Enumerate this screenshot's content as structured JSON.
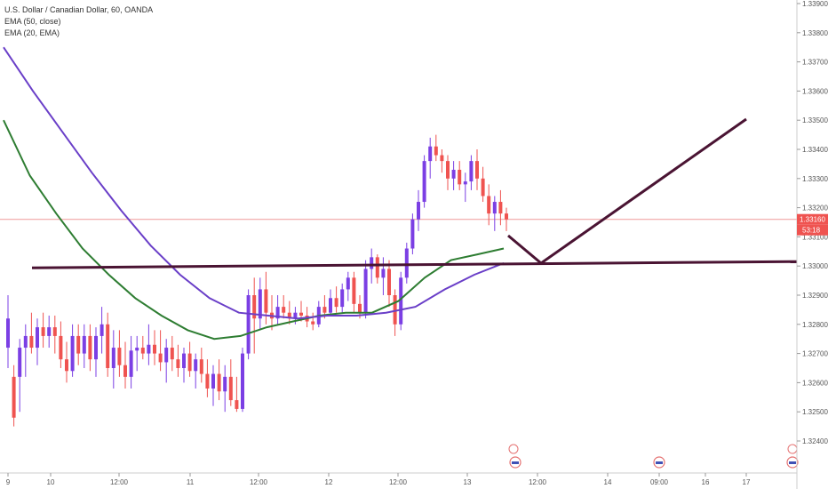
{
  "legend": {
    "title": "U.S. Dollar / Canadian Dollar, 60, OANDA",
    "ema50": "EMA (50, close)",
    "ema20": "EMA (20, EMA)"
  },
  "price_tag": {
    "price": "1.33160",
    "countdown": "53:18"
  },
  "colors": {
    "up": "#7b3fe4",
    "down": "#ef5350",
    "ema50": "#2e7d32",
    "ema20": "#6a3fc8",
    "drawing": "#4a1433",
    "price_line": "#ef9a9a",
    "tag_bg": "#ef5350"
  },
  "chart_data": {
    "type": "candlestick",
    "symbol": "USDCAD",
    "timeframe": "60",
    "source": "OANDA",
    "ylim": [
      1.3235,
      1.3395
    ],
    "y_ticks": [
      "1.32400",
      "1.32500",
      "1.32600",
      "1.32700",
      "1.32800",
      "1.32900",
      "1.33000",
      "1.33100",
      "1.33200",
      "1.33300",
      "1.33400",
      "1.33500",
      "1.33600",
      "1.33700",
      "1.33800",
      "1.33900"
    ],
    "x_ticks": [
      "9",
      "10",
      "12:00",
      "11",
      "12:00",
      "12",
      "12:00",
      "13",
      "12:00",
      "14",
      "09:00",
      "16",
      "17"
    ],
    "candles_ohlc": [
      [
        1.3272,
        1.329,
        1.3265,
        1.3282
      ],
      [
        1.3262,
        1.3266,
        1.3245,
        1.3248
      ],
      [
        1.3262,
        1.3275,
        1.325,
        1.3272
      ],
      [
        1.3272,
        1.328,
        1.3262,
        1.3276
      ],
      [
        1.3276,
        1.3284,
        1.327,
        1.3272
      ],
      [
        1.3272,
        1.3282,
        1.3266,
        1.3279
      ],
      [
        1.3279,
        1.3284,
        1.3272,
        1.3276
      ],
      [
        1.3276,
        1.3283,
        1.3272,
        1.3279
      ],
      [
        1.3279,
        1.3283,
        1.327,
        1.3276
      ],
      [
        1.3276,
        1.3281,
        1.3265,
        1.3268
      ],
      [
        1.3268,
        1.3274,
        1.326,
        1.3264
      ],
      [
        1.3264,
        1.328,
        1.3262,
        1.3276
      ],
      [
        1.3276,
        1.328,
        1.3266,
        1.327
      ],
      [
        1.327,
        1.328,
        1.3265,
        1.3276
      ],
      [
        1.3276,
        1.328,
        1.3264,
        1.3268
      ],
      [
        1.3268,
        1.3279,
        1.3262,
        1.3276
      ],
      [
        1.3276,
        1.3286,
        1.327,
        1.328
      ],
      [
        1.328,
        1.3284,
        1.3262,
        1.3265
      ],
      [
        1.3265,
        1.3278,
        1.3258,
        1.3272
      ],
      [
        1.3272,
        1.3278,
        1.3262,
        1.3266
      ],
      [
        1.3266,
        1.3274,
        1.3258,
        1.3262
      ],
      [
        1.3262,
        1.3276,
        1.3258,
        1.3271
      ],
      [
        1.3271,
        1.3276,
        1.3264,
        1.3272
      ],
      [
        1.3272,
        1.3276,
        1.3268,
        1.327
      ],
      [
        1.327,
        1.328,
        1.3266,
        1.3273
      ],
      [
        1.3273,
        1.3278,
        1.3266,
        1.327
      ],
      [
        1.327,
        1.3278,
        1.3264,
        1.3267
      ],
      [
        1.3267,
        1.3275,
        1.326,
        1.3272
      ],
      [
        1.3272,
        1.3276,
        1.3264,
        1.3268
      ],
      [
        1.3268,
        1.3273,
        1.3262,
        1.3265
      ],
      [
        1.3265,
        1.3272,
        1.326,
        1.327
      ],
      [
        1.327,
        1.3274,
        1.3262,
        1.3264
      ],
      [
        1.3264,
        1.327,
        1.3258,
        1.3268
      ],
      [
        1.3268,
        1.3272,
        1.326,
        1.3263
      ],
      [
        1.3263,
        1.3268,
        1.3255,
        1.3258
      ],
      [
        1.3258,
        1.3266,
        1.3252,
        1.3263
      ],
      [
        1.3263,
        1.3268,
        1.3254,
        1.3257
      ],
      [
        1.3257,
        1.3266,
        1.325,
        1.3262
      ],
      [
        1.3262,
        1.3268,
        1.3252,
        1.3254
      ],
      [
        1.3254,
        1.3262,
        1.325,
        1.3251
      ],
      [
        1.3251,
        1.3272,
        1.325,
        1.327
      ],
      [
        1.327,
        1.3292,
        1.3268,
        1.329
      ],
      [
        1.329,
        1.3296,
        1.327,
        1.3282
      ],
      [
        1.3282,
        1.3296,
        1.3278,
        1.3292
      ],
      [
        1.3292,
        1.3298,
        1.328,
        1.3284
      ],
      [
        1.3284,
        1.329,
        1.3278,
        1.3282
      ],
      [
        1.3282,
        1.329,
        1.328,
        1.3286
      ],
      [
        1.3286,
        1.329,
        1.3282,
        1.3284
      ],
      [
        1.3284,
        1.3288,
        1.328,
        1.3282
      ],
      [
        1.3282,
        1.3286,
        1.328,
        1.3284
      ],
      [
        1.3284,
        1.3288,
        1.3281,
        1.3283
      ],
      [
        1.3283,
        1.3286,
        1.3279,
        1.3281
      ],
      [
        1.3281,
        1.3284,
        1.3278,
        1.328
      ],
      [
        1.328,
        1.3288,
        1.3279,
        1.3286
      ],
      [
        1.3286,
        1.329,
        1.3282,
        1.3284
      ],
      [
        1.3284,
        1.3292,
        1.3283,
        1.3289
      ],
      [
        1.3289,
        1.3293,
        1.3284,
        1.3286
      ],
      [
        1.3286,
        1.3294,
        1.3284,
        1.3292
      ],
      [
        1.3292,
        1.3298,
        1.3288,
        1.3296
      ],
      [
        1.3296,
        1.3298,
        1.3284,
        1.3287
      ],
      [
        1.3287,
        1.329,
        1.3282,
        1.3284
      ],
      [
        1.3284,
        1.3302,
        1.3282,
        1.3299
      ],
      [
        1.3299,
        1.3306,
        1.3294,
        1.3303
      ],
      [
        1.3303,
        1.3304,
        1.3294,
        1.3296
      ],
      [
        1.3296,
        1.3303,
        1.329,
        1.3299
      ],
      [
        1.3299,
        1.3302,
        1.3286,
        1.329
      ],
      [
        1.329,
        1.3292,
        1.3276,
        1.328
      ],
      [
        1.328,
        1.3298,
        1.3278,
        1.3296
      ],
      [
        1.3296,
        1.3308,
        1.3294,
        1.3306
      ],
      [
        1.3306,
        1.3318,
        1.3304,
        1.3316
      ],
      [
        1.3316,
        1.3326,
        1.3312,
        1.3322
      ],
      [
        1.3322,
        1.3338,
        1.332,
        1.3336
      ],
      [
        1.3336,
        1.3344,
        1.333,
        1.3341
      ],
      [
        1.3341,
        1.3345,
        1.3336,
        1.3338
      ],
      [
        1.3338,
        1.334,
        1.3332,
        1.3336
      ],
      [
        1.3336,
        1.3338,
        1.3326,
        1.333
      ],
      [
        1.333,
        1.3336,
        1.3326,
        1.3333
      ],
      [
        1.3333,
        1.3336,
        1.3326,
        1.3328
      ],
      [
        1.3328,
        1.3332,
        1.3322,
        1.3329
      ],
      [
        1.3329,
        1.3338,
        1.3326,
        1.3336
      ],
      [
        1.3336,
        1.334,
        1.3326,
        1.333
      ],
      [
        1.333,
        1.3334,
        1.3322,
        1.3324
      ],
      [
        1.3324,
        1.3328,
        1.3314,
        1.3318
      ],
      [
        1.3318,
        1.3324,
        1.3312,
        1.3322
      ],
      [
        1.3322,
        1.3326,
        1.3314,
        1.3318
      ],
      [
        1.3318,
        1.332,
        1.3312,
        1.3316
      ]
    ],
    "series": [
      {
        "name": "EMA (50, close)",
        "values": [
          1.335,
          1.3331,
          1.3318,
          1.3306,
          1.3297,
          1.3289,
          1.3283,
          1.3278,
          1.3275,
          1.3276,
          1.3279,
          1.3281,
          1.3283,
          1.3284,
          1.3284,
          1.3288,
          1.3296,
          1.3302,
          1.3304,
          1.3306
        ]
      },
      {
        "name": "EMA (20, EMA)",
        "values": [
          1.3375,
          1.336,
          1.3346,
          1.3332,
          1.3319,
          1.3307,
          1.3297,
          1.3289,
          1.3284,
          1.3283,
          1.3282,
          1.3283,
          1.3283,
          1.3284,
          1.3286,
          1.3292,
          1.3297,
          1.3301
        ]
      }
    ],
    "horizontal_line_price": 1.3316,
    "annotations": "hand-drawn support line near 1.3300 and a down-then-up projection line"
  }
}
